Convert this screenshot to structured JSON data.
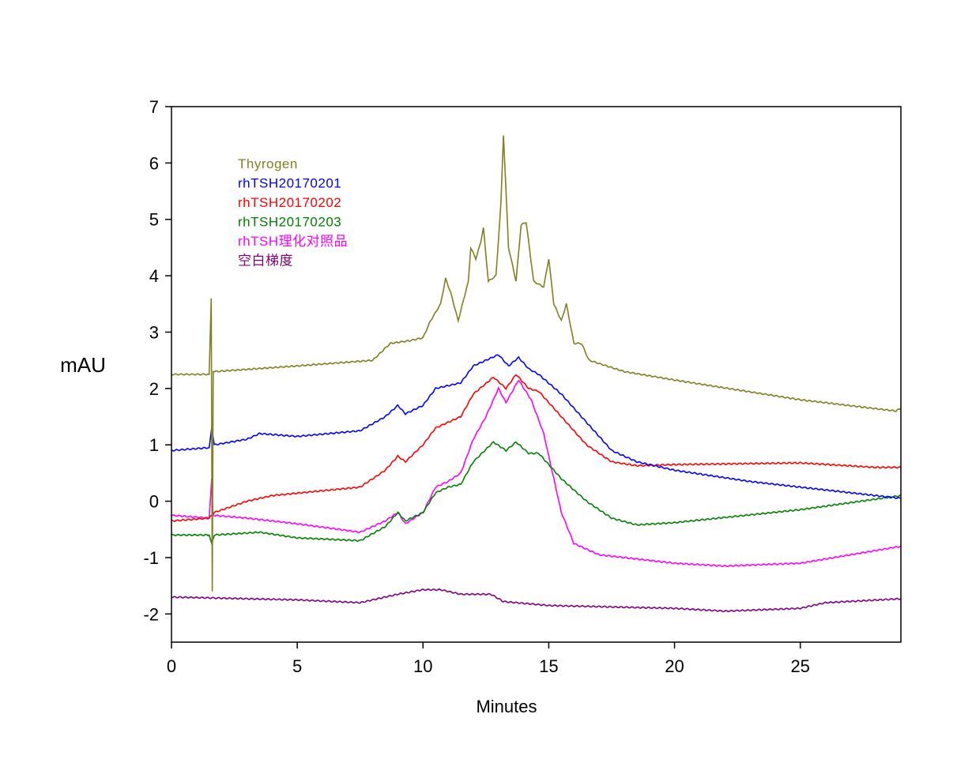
{
  "chart_data": {
    "type": "line",
    "title": "",
    "xlabel": "Minutes",
    "ylabel": "mAU",
    "xlim": [
      0,
      29
    ],
    "ylim": [
      -2.5,
      7
    ],
    "xticks": [
      0,
      5,
      10,
      15,
      20,
      25
    ],
    "yticks": [
      -2,
      -1,
      0,
      1,
      2,
      3,
      4,
      5,
      6,
      7
    ],
    "grid": false,
    "legend_placement": "top-left",
    "series": [
      {
        "name": "Thyrogen",
        "color": "#808020",
        "x": [
          0,
          1.5,
          1.58,
          1.62,
          1.66,
          1.72,
          5,
          8,
          8.7,
          9.5,
          10,
          10.3,
          10.7,
          10.9,
          11.1,
          11.4,
          11.8,
          11.9,
          12.1,
          12.3,
          12.4,
          12.6,
          12.9,
          13.1,
          13.2,
          13.4,
          13.7,
          13.9,
          14.1,
          14.4,
          14.8,
          15.0,
          15.2,
          15.5,
          15.7,
          16.0,
          16.3,
          16.6,
          18,
          20,
          25,
          28.8,
          29
        ],
        "y": [
          2.25,
          2.25,
          3.6,
          -1.6,
          2.3,
          2.3,
          2.4,
          2.5,
          2.8,
          2.85,
          2.9,
          3.2,
          3.5,
          3.95,
          3.7,
          3.2,
          3.9,
          4.5,
          4.3,
          4.6,
          4.85,
          3.9,
          4.0,
          5.3,
          6.5,
          4.5,
          3.9,
          4.9,
          4.95,
          3.9,
          3.8,
          4.3,
          3.5,
          3.2,
          3.5,
          2.8,
          2.8,
          2.5,
          2.3,
          2.15,
          1.8,
          1.6,
          1.65
        ]
      },
      {
        "name": "rhTSH20170201",
        "color": "#0000ff",
        "x": [
          0,
          1.5,
          1.6,
          1.7,
          3,
          3.5,
          5,
          7.5,
          8.5,
          9,
          9.3,
          10,
          10.5,
          11,
          11.5,
          12,
          12.5,
          13,
          13.4,
          13.8,
          14.2,
          14.6,
          15.5,
          16.5,
          17.5,
          18.5,
          20,
          23,
          27,
          29
        ],
        "y": [
          0.9,
          0.95,
          1.3,
          1.0,
          1.1,
          1.2,
          1.15,
          1.25,
          1.5,
          1.7,
          1.55,
          1.7,
          2.0,
          2.05,
          2.1,
          2.4,
          2.5,
          2.6,
          2.4,
          2.55,
          2.35,
          2.25,
          1.9,
          1.4,
          0.9,
          0.7,
          0.55,
          0.35,
          0.15,
          0.05
        ]
      },
      {
        "name": "rhTSH20170202",
        "color": "#ff0000",
        "x": [
          0,
          1.5,
          1.7,
          3,
          4,
          7.5,
          8.5,
          9,
          9.3,
          10,
          10.5,
          11.5,
          12,
          12.8,
          13.3,
          13.7,
          14.2,
          14.6,
          15.5,
          16.5,
          17.5,
          18.5,
          20,
          25,
          28,
          29
        ],
        "y": [
          -0.35,
          -0.3,
          -0.2,
          0,
          0.1,
          0.25,
          0.55,
          0.8,
          0.7,
          1.0,
          1.3,
          1.5,
          1.9,
          2.2,
          2.0,
          2.25,
          2.0,
          1.95,
          1.5,
          1.0,
          0.7,
          0.63,
          0.65,
          0.68,
          0.6,
          0.6
        ]
      },
      {
        "name": "rhTSH20170203",
        "color": "#008000",
        "x": [
          0,
          1.5,
          1.6,
          1.7,
          3.5,
          5,
          7.5,
          8.5,
          9,
          9.3,
          10,
          10.5,
          11,
          11.5,
          12,
          12.8,
          13.3,
          13.7,
          14.2,
          14.6,
          15.5,
          16.5,
          17.5,
          18.5,
          20,
          25,
          29
        ],
        "y": [
          -0.6,
          -0.6,
          -0.75,
          -0.6,
          -0.55,
          -0.65,
          -0.7,
          -0.45,
          -0.2,
          -0.35,
          -0.2,
          0.15,
          0.25,
          0.3,
          0.7,
          1.05,
          0.9,
          1.05,
          0.85,
          0.85,
          0.4,
          0,
          -0.3,
          -0.42,
          -0.38,
          -0.15,
          0.1
        ]
      },
      {
        "name": "rhTSH理化对照品",
        "color": "#ff00ff",
        "x": [
          0,
          1.5,
          1.6,
          1.65,
          3,
          5,
          7.5,
          8.5,
          9,
          9.3,
          10,
          10.5,
          11,
          11.5,
          12,
          12.5,
          13,
          13.3,
          13.8,
          14.3,
          14.8,
          15.5,
          16,
          17,
          20,
          22,
          25,
          29
        ],
        "y": [
          -0.25,
          -0.3,
          0.4,
          -0.25,
          -0.3,
          -0.4,
          -0.55,
          -0.35,
          -0.2,
          -0.4,
          -0.2,
          0.25,
          0.35,
          0.5,
          1.1,
          1.5,
          2.0,
          1.75,
          2.15,
          1.8,
          1.2,
          -0.2,
          -0.75,
          -0.95,
          -1.1,
          -1.15,
          -1.1,
          -0.8
        ]
      },
      {
        "name": "空白梯度",
        "color": "#800080",
        "x": [
          0,
          5,
          7.5,
          9,
          10,
          10.7,
          11.5,
          12.7,
          13.2,
          15,
          20,
          22,
          25,
          26,
          29
        ],
        "y": [
          -1.7,
          -1.75,
          -1.8,
          -1.65,
          -1.57,
          -1.57,
          -1.65,
          -1.65,
          -1.78,
          -1.85,
          -1.9,
          -1.95,
          -1.9,
          -1.8,
          -1.73
        ]
      }
    ]
  }
}
